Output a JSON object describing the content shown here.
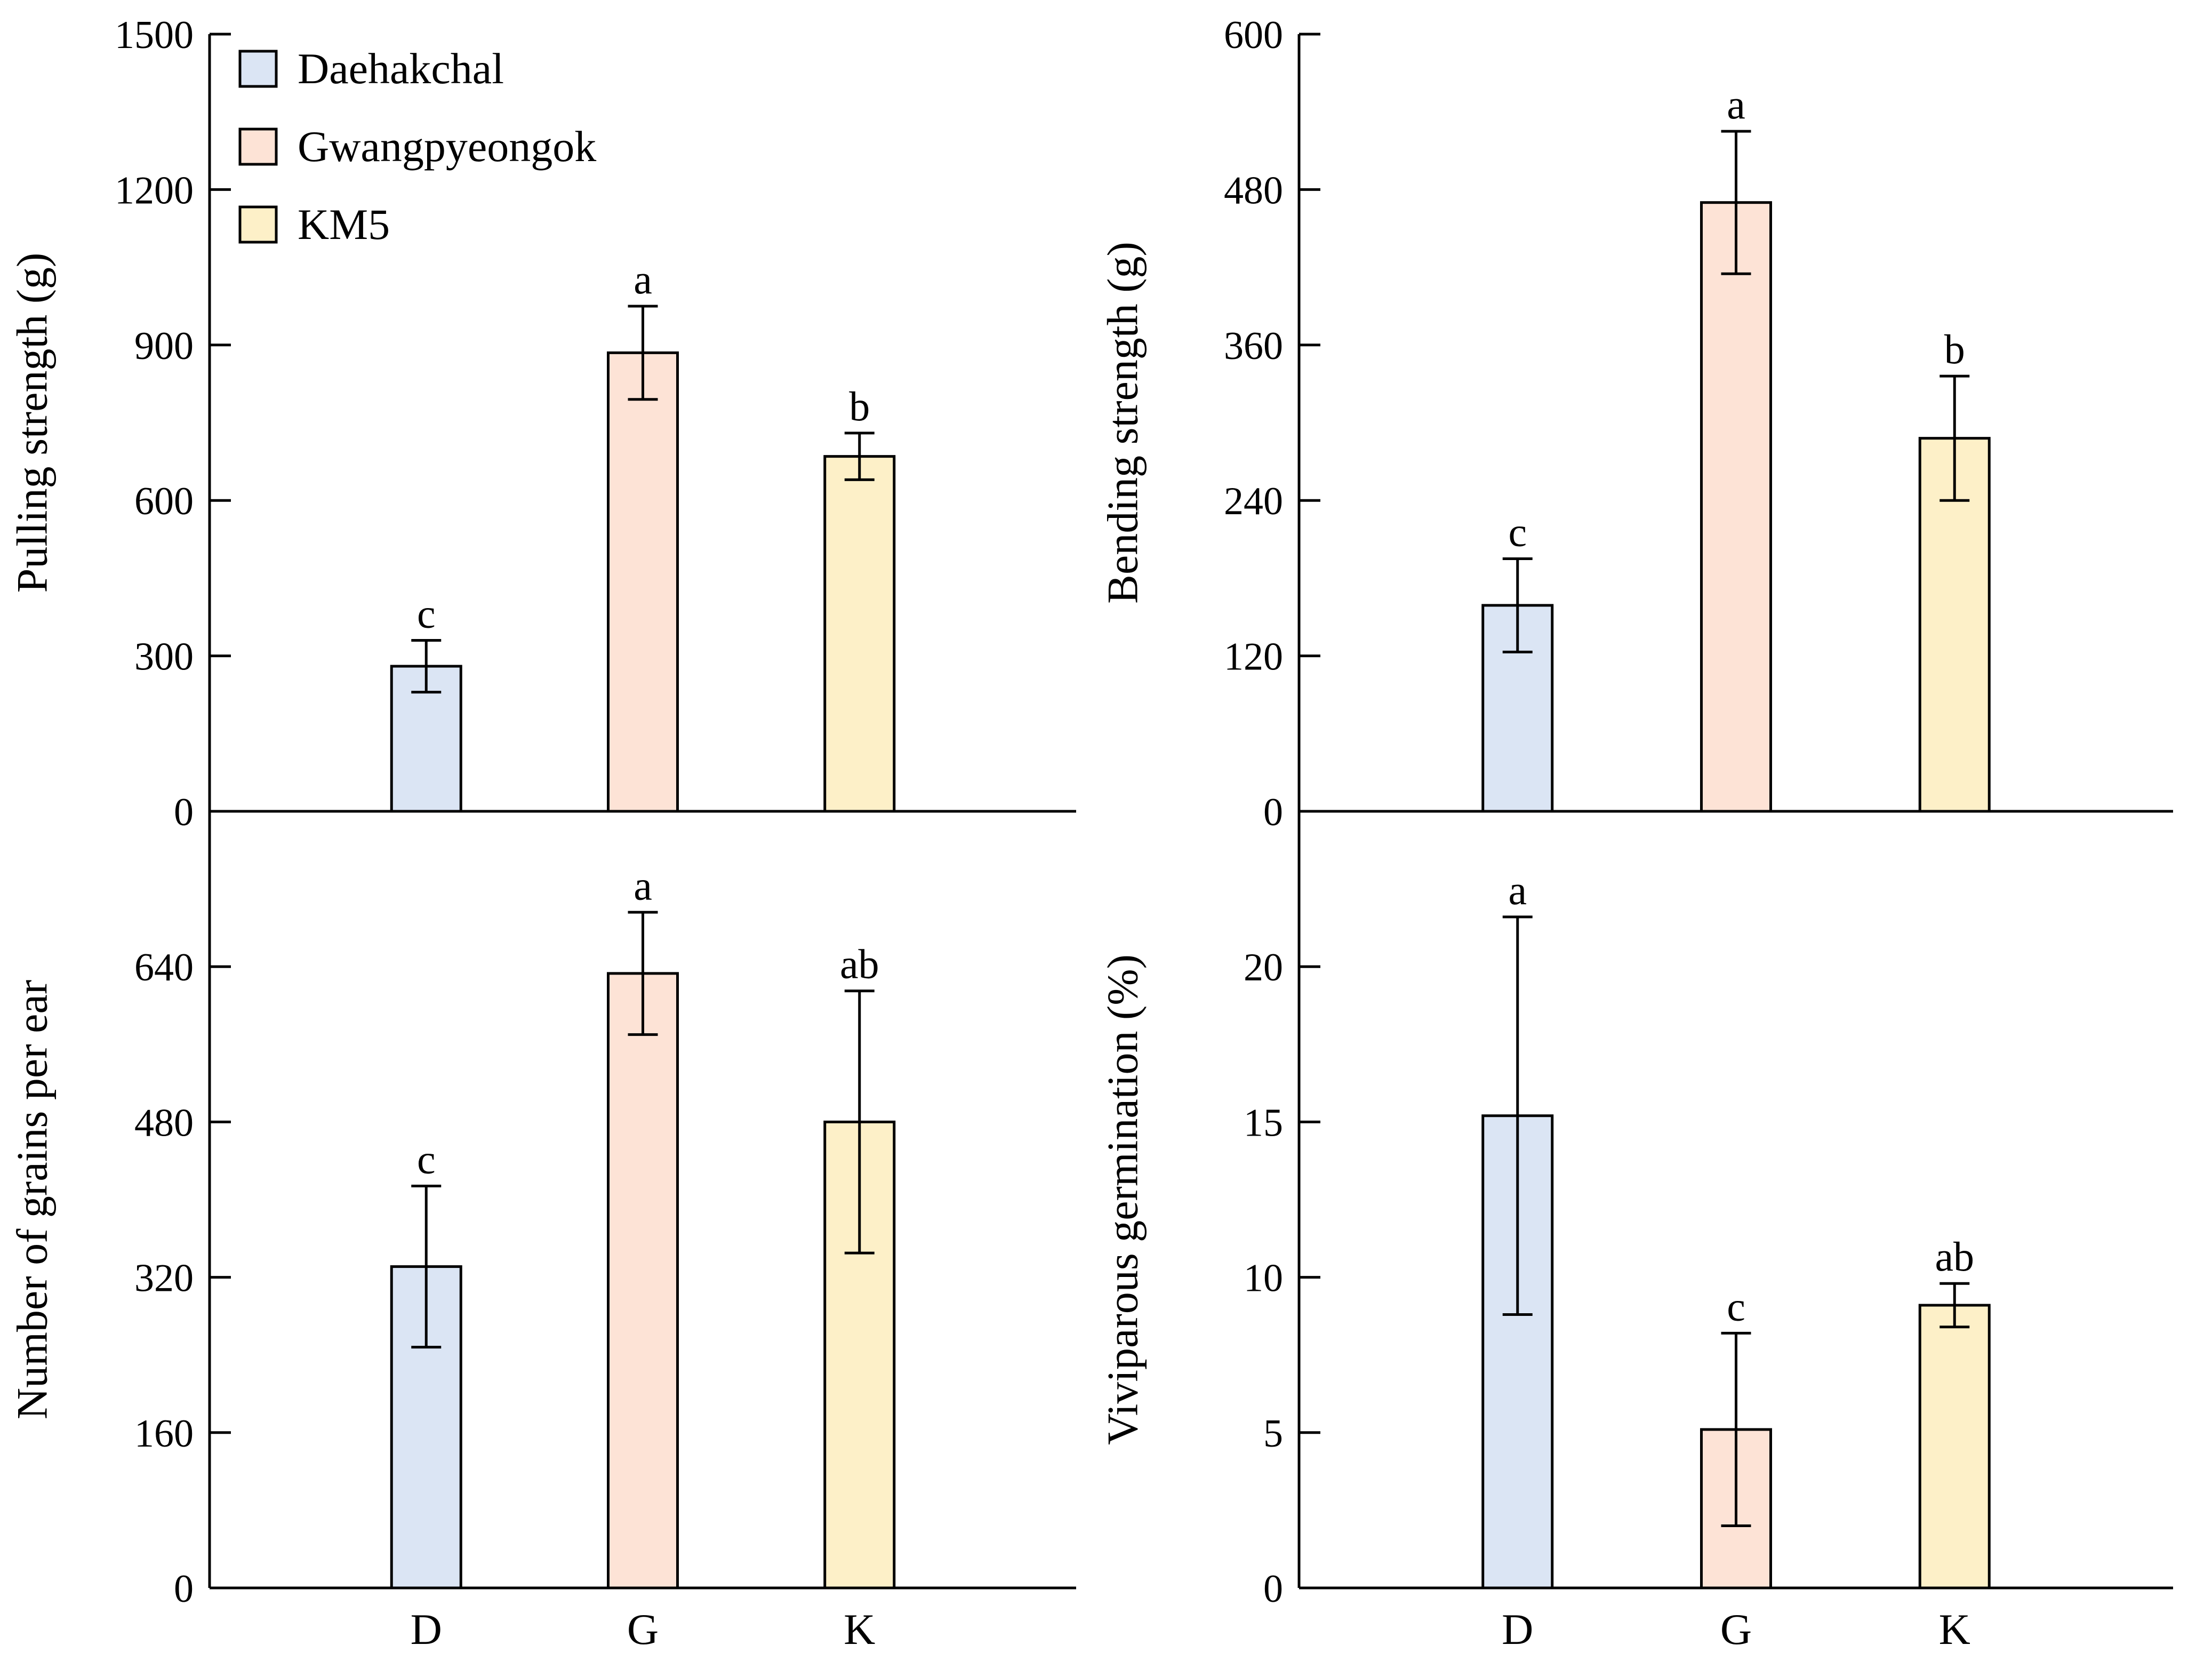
{
  "colors": {
    "D": "#dbe5f4",
    "G": "#fde3d6",
    "K": "#fdf0c8",
    "stroke": "#000000"
  },
  "legend": [
    {
      "key": "D",
      "label": "Daehakchal"
    },
    {
      "key": "G",
      "label": "Gwangpyeongok"
    },
    {
      "key": "K",
      "label": "KM5"
    }
  ],
  "chart_data": [
    {
      "id": "pulling",
      "type": "bar",
      "ylabel": "Pulling strength (g)",
      "ylim": [
        0,
        1500
      ],
      "yticks": [
        0,
        300,
        600,
        900,
        1200,
        1500
      ],
      "categories": [
        "D",
        "G",
        "K"
      ],
      "values": [
        280,
        885,
        685
      ],
      "errors": [
        50,
        90,
        45
      ],
      "significance": [
        "c",
        "a",
        "b"
      ]
    },
    {
      "id": "bending",
      "type": "bar",
      "ylabel": "Bending strength (g)",
      "ylim": [
        0,
        600
      ],
      "yticks": [
        0,
        120,
        240,
        360,
        480,
        600
      ],
      "categories": [
        "D",
        "G",
        "K"
      ],
      "values": [
        159,
        470,
        288
      ],
      "errors": [
        36,
        55,
        48
      ],
      "significance": [
        "c",
        "a",
        "b"
      ]
    },
    {
      "id": "grains",
      "type": "bar",
      "ylabel": "Number of grains per ear",
      "ylim": [
        0,
        800
      ],
      "yticks": [
        0,
        160,
        320,
        480,
        640
      ],
      "categories": [
        "D",
        "G",
        "K"
      ],
      "values": [
        331,
        633,
        480
      ],
      "errors": [
        83,
        63,
        135
      ],
      "significance": [
        "c",
        "a",
        "ab"
      ]
    },
    {
      "id": "viviparous",
      "type": "bar",
      "ylabel": "Viviparous germination (%)",
      "ylim": [
        0,
        25
      ],
      "yticks": [
        0,
        5,
        10,
        15,
        20
      ],
      "categories": [
        "D",
        "G",
        "K"
      ],
      "values": [
        15.2,
        5.1,
        9.1
      ],
      "errors": [
        6.4,
        3.1,
        0.7
      ],
      "significance": [
        "a",
        "c",
        "ab"
      ]
    }
  ]
}
